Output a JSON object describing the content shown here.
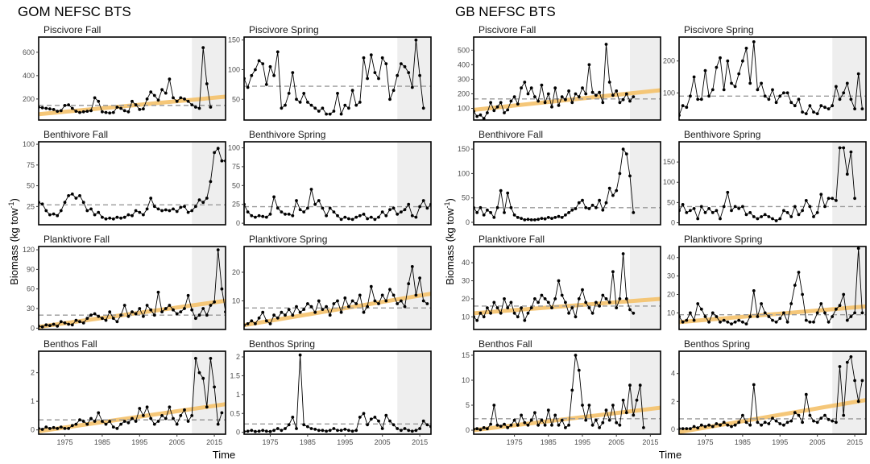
{
  "panel_group_titles": [
    "GOM NEFSC BTS",
    "GB NEFSC BTS"
  ],
  "shared_axes": {
    "xlabel": "Time",
    "ylabel_main": "Biomass (kg tow",
    "ylabel_sup": "-1",
    "ylabel_end": ")"
  },
  "colors": {
    "series": "#000000",
    "trend": "#f5c26b",
    "mean_line": "#9a9a9a",
    "shade": "#eeeeee"
  },
  "chart_data": [
    {
      "group": 0,
      "row": 0,
      "col": 0,
      "type": "line",
      "title": "Piscivore Fall",
      "xlim": [
        1968,
        2018
      ],
      "ylim": [
        20,
        730
      ],
      "yticks": [
        200,
        400,
        600
      ],
      "xticks": [],
      "mean": 145,
      "shade_from": 2009,
      "trend": [
        1968,
        70,
        2018,
        220
      ],
      "start": 1968,
      "values": [
        130,
        125,
        120,
        115,
        110,
        95,
        100,
        145,
        150,
        120,
        95,
        85,
        90,
        95,
        100,
        210,
        180,
        90,
        85,
        80,
        85,
        130,
        120,
        100,
        90,
        180,
        150,
        110,
        115,
        200,
        260,
        230,
        190,
        280,
        250,
        370,
        210,
        180,
        210,
        200,
        180,
        150,
        130,
        120,
        640,
        330,
        130
      ]
    },
    {
      "group": 0,
      "row": 0,
      "col": 1,
      "type": "line",
      "title": "Piscivore Spring",
      "xlim": [
        1968,
        2018
      ],
      "ylim": [
        15,
        155
      ],
      "yticks": [
        50,
        100,
        150
      ],
      "xticks": [],
      "mean": 72,
      "shade_from": 2009,
      "trend": null,
      "start": 1968,
      "values": [
        85,
        70,
        90,
        100,
        115,
        110,
        75,
        105,
        90,
        130,
        35,
        40,
        60,
        95,
        50,
        45,
        60,
        45,
        40,
        35,
        30,
        35,
        25,
        25,
        30,
        60,
        25,
        40,
        35,
        65,
        40,
        45,
        120,
        85,
        125,
        95,
        85,
        120,
        110,
        50,
        65,
        90,
        110,
        105,
        95,
        70,
        150,
        90,
        35
      ]
    },
    {
      "group": 0,
      "row": 1,
      "col": 0,
      "type": "line",
      "title": "Benthivore Fall",
      "xlim": [
        1968,
        2018
      ],
      "ylim": [
        3,
        103
      ],
      "yticks": [
        25,
        50,
        75,
        100
      ],
      "xticks": [],
      "mean": 27,
      "shade_from": 2009,
      "trend": null,
      "start": 1968,
      "values": [
        30,
        28,
        20,
        15,
        16,
        14,
        20,
        30,
        38,
        40,
        35,
        38,
        30,
        20,
        22,
        15,
        18,
        12,
        10,
        11,
        10,
        12,
        11,
        12,
        15,
        14,
        20,
        18,
        15,
        22,
        35,
        25,
        22,
        20,
        21,
        20,
        22,
        19,
        24,
        25,
        18,
        20,
        25,
        33,
        30,
        35,
        55,
        90,
        95,
        80,
        80
      ]
    },
    {
      "group": 0,
      "row": 1,
      "col": 1,
      "type": "line",
      "title": "Benthivore Spring",
      "xlim": [
        1968,
        2018
      ],
      "ylim": [
        -2,
        108
      ],
      "yticks": [
        0,
        25,
        50,
        75,
        100
      ],
      "xticks": [],
      "mean": 22,
      "shade_from": 2009,
      "trend": null,
      "start": 1968,
      "values": [
        25,
        15,
        10,
        8,
        10,
        9,
        8,
        12,
        35,
        20,
        15,
        12,
        12,
        10,
        30,
        18,
        15,
        20,
        45,
        25,
        30,
        20,
        10,
        20,
        15,
        10,
        5,
        8,
        6,
        5,
        8,
        10,
        12,
        6,
        8,
        5,
        8,
        15,
        10,
        18,
        20,
        12,
        15,
        18,
        25,
        10,
        8,
        22,
        30,
        20,
        25,
        35,
        40,
        90,
        105,
        85,
        55
      ]
    },
    {
      "group": 0,
      "row": 2,
      "col": 0,
      "type": "line",
      "title": "Planktivore Fall",
      "xlim": [
        1968,
        2018
      ],
      "ylim": [
        -2,
        125
      ],
      "yticks": [
        0,
        30,
        60,
        90,
        120
      ],
      "xticks": [],
      "mean": 20,
      "shade_from": 2009,
      "trend": [
        1968,
        2,
        2018,
        42
      ],
      "start": 1968,
      "values": [
        3,
        2,
        5,
        4,
        6,
        3,
        10,
        8,
        6,
        5,
        12,
        10,
        8,
        15,
        20,
        22,
        18,
        15,
        12,
        25,
        15,
        10,
        20,
        35,
        18,
        25,
        22,
        30,
        18,
        35,
        28,
        20,
        55,
        25,
        30,
        35,
        28,
        22,
        25,
        30,
        50,
        28,
        15,
        20,
        30,
        20,
        35,
        40,
        120,
        60,
        25
      ]
    },
    {
      "group": 0,
      "row": 2,
      "col": 1,
      "type": "line",
      "title": "Planktivore Spring",
      "xlim": [
        1968,
        2018
      ],
      "ylim": [
        0,
        29
      ],
      "yticks": [
        10,
        20
      ],
      "xticks": [],
      "mean": 7.5,
      "shade_from": 2009,
      "trend": [
        1968,
        1.5,
        2018,
        12.5
      ],
      "start": 1968,
      "values": [
        1.5,
        2,
        3,
        2,
        4,
        6,
        3,
        2,
        5,
        4,
        6,
        5,
        7,
        5,
        8,
        6,
        7,
        9,
        8,
        6,
        10,
        7,
        8,
        5,
        9,
        10,
        6,
        11,
        8,
        10,
        9,
        12,
        6,
        8,
        15,
        10,
        9,
        12,
        10,
        14,
        12,
        9,
        10,
        8,
        16,
        22,
        12,
        18,
        10,
        9
      ]
    },
    {
      "group": 0,
      "row": 3,
      "col": 0,
      "type": "line",
      "title": "Benthos Fall",
      "xlim": [
        1968,
        2018
      ],
      "ylim": [
        -0.15,
        2.75
      ],
      "yticks": [
        0,
        1,
        2
      ],
      "xticks": [
        1975,
        1985,
        1995,
        2005,
        2015
      ],
      "mean": 0.35,
      "shade_from": 2009,
      "trend": [
        1968,
        -0.05,
        2018,
        0.9
      ],
      "start": 1968,
      "values": [
        0.05,
        0.02,
        0.1,
        0.05,
        0.08,
        0.05,
        0.1,
        0.05,
        0.05,
        0.15,
        0.2,
        0.35,
        0.3,
        0.2,
        0.4,
        0.3,
        0.6,
        0.3,
        0.2,
        0.3,
        0.1,
        0.05,
        0.2,
        0.3,
        0.25,
        0.4,
        0.3,
        0.75,
        0.5,
        0.8,
        0.4,
        0.2,
        0.3,
        0.5,
        0.4,
        0.8,
        0.4,
        0.2,
        0.5,
        0.7,
        0.3,
        0.5,
        2.5,
        2.0,
        1.8,
        0.8,
        2.5,
        1.5,
        0.2,
        0.6
      ]
    },
    {
      "group": 0,
      "row": 3,
      "col": 1,
      "type": "line",
      "title": "Benthos Spring",
      "xlim": [
        1968,
        2018
      ],
      "ylim": [
        -0.05,
        2.15
      ],
      "yticks": [
        0.0,
        0.5,
        1.0,
        1.5,
        2.0
      ],
      "xticks": [
        1975,
        1985,
        1995,
        2005,
        2015
      ],
      "mean": 0.22,
      "shade_from": 2009,
      "trend": null,
      "start": 1968,
      "values": [
        0.02,
        0.03,
        0.05,
        0.02,
        0.03,
        0.05,
        0.03,
        0.02,
        0.05,
        0.1,
        0.05,
        0.1,
        0.2,
        0.4,
        0.1,
        2.05,
        0.2,
        0.15,
        0.1,
        0.08,
        0.05,
        0.05,
        0.03,
        0.05,
        0.1,
        0.05,
        0.05,
        0.08,
        0.05,
        0.03,
        0.05,
        0.4,
        0.5,
        0.2,
        0.35,
        0.4,
        0.3,
        0.1,
        0.45,
        0.3,
        0.2,
        0.1,
        0.05,
        0.1,
        0.05,
        0.03,
        0.05,
        0.1,
        0.3,
        0.2,
        0.15,
        0.25,
        1.0,
        0.7,
        1.0,
        0.65
      ]
    },
    {
      "group": 1,
      "row": 0,
      "col": 0,
      "type": "line",
      "title": "Piscivore Fall",
      "xlim": [
        1963,
        2018
      ],
      "ylim": [
        20,
        590
      ],
      "yticks": [
        100,
        200,
        300,
        400,
        500
      ],
      "xticks": [],
      "mean": 165,
      "shade_from": 2009,
      "trend": [
        1963,
        90,
        2018,
        225
      ],
      "start": 1963,
      "values": [
        80,
        45,
        55,
        30,
        70,
        140,
        85,
        110,
        140,
        70,
        90,
        150,
        180,
        130,
        240,
        280,
        200,
        240,
        180,
        150,
        260,
        140,
        200,
        110,
        240,
        120,
        180,
        160,
        220,
        140,
        200,
        180,
        240,
        200,
        400,
        210,
        190,
        210,
        140,
        540,
        280,
        190,
        220,
        140,
        160,
        200,
        150,
        180
      ]
    },
    {
      "group": 1,
      "row": 0,
      "col": 1,
      "type": "line",
      "title": "Piscivore Spring",
      "xlim": [
        1968,
        2018
      ],
      "ylim": [
        15,
        275
      ],
      "yticks": [
        100,
        200
      ],
      "xticks": [],
      "mean": 90,
      "shade_from": 2009,
      "trend": null,
      "start": 1968,
      "values": [
        30,
        60,
        55,
        90,
        150,
        80,
        80,
        170,
        90,
        110,
        180,
        210,
        110,
        200,
        130,
        120,
        160,
        200,
        240,
        130,
        260,
        110,
        130,
        90,
        80,
        110,
        70,
        90,
        100,
        100,
        70,
        60,
        80,
        40,
        35,
        60,
        40,
        35,
        60,
        55,
        50,
        60,
        120,
        80,
        100,
        130,
        80,
        50,
        160,
        50
      ]
    },
    {
      "group": 1,
      "row": 1,
      "col": 0,
      "type": "line",
      "title": "Benthivore Fall",
      "xlim": [
        1963,
        2018
      ],
      "ylim": [
        -5,
        165
      ],
      "yticks": [
        0,
        50,
        100,
        150
      ],
      "xticks": [],
      "mean": 30,
      "shade_from": 2009,
      "trend": null,
      "start": 1963,
      "values": [
        30,
        20,
        30,
        15,
        25,
        20,
        10,
        30,
        65,
        20,
        60,
        30,
        15,
        10,
        8,
        5,
        6,
        5,
        5,
        6,
        8,
        7,
        10,
        8,
        10,
        12,
        10,
        15,
        20,
        25,
        28,
        40,
        45,
        30,
        28,
        35,
        30,
        45,
        25,
        40,
        70,
        55,
        65,
        100,
        150,
        140,
        95,
        20
      ]
    },
    {
      "group": 1,
      "row": 1,
      "col": 1,
      "type": "line",
      "title": "Benthivore Spring",
      "xlim": [
        1968,
        2018
      ],
      "ylim": [
        -5,
        200
      ],
      "yticks": [
        0,
        50,
        100,
        150
      ],
      "xticks": [],
      "mean": 40,
      "shade_from": 2009,
      "trend": null,
      "start": 1968,
      "values": [
        30,
        45,
        25,
        30,
        35,
        10,
        40,
        25,
        35,
        25,
        30,
        10,
        40,
        75,
        30,
        40,
        35,
        40,
        20,
        25,
        15,
        10,
        15,
        20,
        15,
        10,
        5,
        10,
        30,
        25,
        15,
        40,
        20,
        30,
        55,
        40,
        15,
        25,
        70,
        40,
        60,
        60,
        55,
        185,
        185,
        120,
        175,
        60
      ]
    },
    {
      "group": 1,
      "row": 2,
      "col": 0,
      "type": "line",
      "title": "Planktivore Fall",
      "xlim": [
        1963,
        2018
      ],
      "ylim": [
        3,
        49
      ],
      "yticks": [
        10,
        20,
        30,
        40
      ],
      "xticks": [],
      "mean": 16,
      "shade_from": 2009,
      "trend": [
        1963,
        12,
        2018,
        20
      ],
      "start": 1963,
      "values": [
        10,
        8,
        12,
        10,
        15,
        12,
        18,
        15,
        12,
        20,
        15,
        18,
        12,
        10,
        15,
        8,
        12,
        15,
        20,
        18,
        22,
        20,
        18,
        15,
        20,
        30,
        22,
        18,
        12,
        15,
        10,
        20,
        25,
        18,
        15,
        12,
        18,
        16,
        22,
        20,
        18,
        35,
        15,
        20,
        45,
        20,
        14,
        12
      ]
    },
    {
      "group": 1,
      "row": 2,
      "col": 1,
      "type": "line",
      "title": "Planktivore Spring",
      "xlim": [
        1968,
        2018
      ],
      "ylim": [
        1,
        46
      ],
      "yticks": [
        10,
        20,
        30,
        40
      ],
      "xticks": [],
      "mean": 9,
      "shade_from": 2009,
      "trend": [
        1968,
        5,
        2018,
        13.5
      ],
      "start": 1968,
      "values": [
        8,
        5,
        6,
        10,
        6,
        15,
        12,
        8,
        5,
        10,
        8,
        5,
        6,
        5,
        4,
        5,
        6,
        5,
        4,
        8,
        22,
        8,
        15,
        10,
        8,
        6,
        5,
        7,
        10,
        5,
        15,
        25,
        32,
        20,
        6,
        5,
        5,
        10,
        15,
        10,
        5,
        8,
        12,
        14,
        20,
        6,
        8,
        10,
        45,
        10
      ]
    },
    {
      "group": 1,
      "row": 3,
      "col": 0,
      "type": "line",
      "title": "Benthos Fall",
      "xlim": [
        1963,
        2018
      ],
      "ylim": [
        -0.8,
        15.8
      ],
      "yticks": [
        0,
        5,
        10,
        15
      ],
      "xticks": [
        1975,
        1985,
        1995,
        2005,
        2015
      ],
      "mean": 2.3,
      "shade_from": 2009,
      "trend": [
        1963,
        0,
        2018,
        4.5
      ],
      "start": 1963,
      "values": [
        0.2,
        0.3,
        0.1,
        0.5,
        0.3,
        1.2,
        5.0,
        1.0,
        0.8,
        1.2,
        0.5,
        1.0,
        2.0,
        1.0,
        3.0,
        1.5,
        1.0,
        2.0,
        3.5,
        1.0,
        2.0,
        1.0,
        4.0,
        1.0,
        3.0,
        1.0,
        2.0,
        0.5,
        1.0,
        8.0,
        15.0,
        12.0,
        5.0,
        2.0,
        5.0,
        1.0,
        2.0,
        0.5,
        1.5,
        4.0,
        2.0,
        5.0,
        1.5,
        1.0,
        6.0,
        3.5,
        9.0,
        3.0,
        6.0,
        9.0,
        0.5
      ]
    },
    {
      "group": 1,
      "row": 3,
      "col": 1,
      "type": "line",
      "title": "Benthos Spring",
      "xlim": [
        1968,
        2018
      ],
      "ylim": [
        -0.35,
        5.6
      ],
      "yticks": [
        0,
        2,
        4
      ],
      "xticks": [
        1975,
        1985,
        1995,
        2005,
        2015
      ],
      "mean": 0.75,
      "shade_from": 2009,
      "trend": [
        1968,
        -0.2,
        2018,
        2.1
      ],
      "start": 1968,
      "values": [
        0.05,
        0.05,
        0.05,
        0.05,
        0.2,
        0.1,
        0.3,
        0.2,
        0.3,
        0.2,
        0.4,
        0.3,
        0.5,
        0.3,
        0.2,
        0.3,
        0.5,
        1.0,
        0.5,
        0.3,
        3.2,
        0.5,
        0.3,
        0.5,
        0.4,
        0.8,
        0.6,
        0.4,
        0.3,
        0.5,
        0.6,
        1.2,
        1.0,
        0.5,
        2.5,
        1.0,
        0.6,
        0.5,
        0.8,
        1.0,
        0.7,
        0.6,
        0.5,
        4.5,
        1.0,
        4.8,
        5.2,
        3.5,
        2.0,
        3.5
      ]
    }
  ]
}
